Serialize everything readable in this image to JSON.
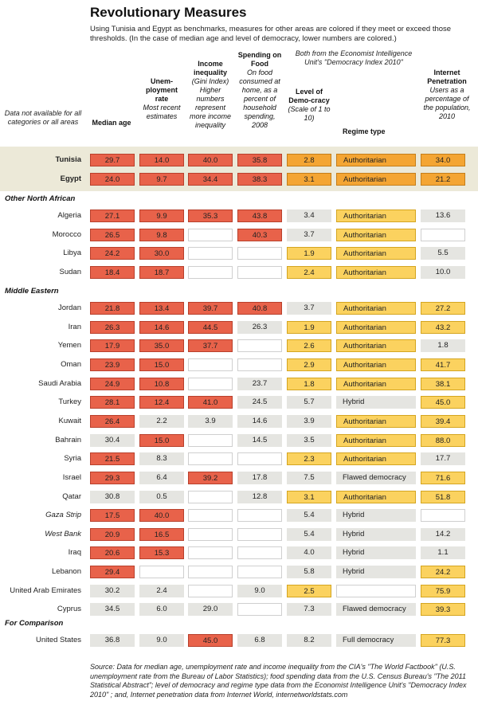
{
  "title": "Revolutionary Measures",
  "intro": "Using Tunisia and Egypt as benchmarks, measures for other areas are colored if they meet or exceed those thresholds.  (In the case of median age and level of democracy, lower numbers are colored.)",
  "note": "Data not available for all categories or all areas",
  "band_header": "Both from the Economist Intelligence Unit's \"Democracy Index 2010\"",
  "columns": [
    {
      "key": "age",
      "title": "Median age",
      "sub": ""
    },
    {
      "key": "unemp",
      "title": "Unem-ployment rate",
      "sub": "Most recent estimates"
    },
    {
      "key": "gini",
      "title": "Income inequality",
      "sub": "(Gini Index) Higher numbers represent more income inequality"
    },
    {
      "key": "food",
      "title": "Spending on Food",
      "sub": "On food consumed at home, as a percent of household spending, 2008"
    },
    {
      "key": "dem",
      "title": "Level of Demo-cracy",
      "sub": "(Scale of 1 to 10)"
    },
    {
      "key": "regime",
      "title": "Regime type",
      "sub": ""
    },
    {
      "key": "net",
      "title": "Internet Penetration",
      "sub": "Users as a percentage of the population, 2010"
    }
  ],
  "colors": {
    "red": "#e8624a",
    "orange": "#f4a533",
    "yellow": "#fbd25f",
    "gray": "#e5e5e1",
    "band": "#ece9d8"
  },
  "chart_data": {
    "type": "table",
    "title": "Revolutionary Measures",
    "sections": [
      {
        "name": "",
        "rows": [
          {
            "name": "Tunisia",
            "style": "bold",
            "cells": [
              [
                "29.7",
                "r"
              ],
              [
                "14.0",
                "r"
              ],
              [
                "40.0",
                "r"
              ],
              [
                "35.8",
                "r"
              ],
              [
                "2.8",
                "o"
              ],
              [
                "Authoritarian",
                "o"
              ],
              [
                "34.0",
                "o"
              ]
            ]
          },
          {
            "name": "Egypt",
            "style": "bold",
            "cells": [
              [
                "24.0",
                "r"
              ],
              [
                "9.7",
                "r"
              ],
              [
                "34.4",
                "r"
              ],
              [
                "38.3",
                "r"
              ],
              [
                "3.1",
                "o"
              ],
              [
                "Authoritarian",
                "o"
              ],
              [
                "21.2",
                "o"
              ]
            ]
          }
        ]
      },
      {
        "name": "Other North African",
        "rows": [
          {
            "name": "Algeria",
            "cells": [
              [
                "27.1",
                "r"
              ],
              [
                "9.9",
                "r"
              ],
              [
                "35.3",
                "r"
              ],
              [
                "43.8",
                "r"
              ],
              [
                "3.4",
                "g"
              ],
              [
                "Authoritarian",
                "y"
              ],
              [
                "13.6",
                "g"
              ]
            ]
          },
          {
            "name": "Morocco",
            "cells": [
              [
                "26.5",
                "r"
              ],
              [
                "9.8",
                "r"
              ],
              [
                "",
                "e"
              ],
              [
                "40.3",
                "r"
              ],
              [
                "3.7",
                "g"
              ],
              [
                "Authoritarian",
                "y"
              ],
              [
                "",
                "e"
              ]
            ]
          },
          {
            "name": "Libya",
            "cells": [
              [
                "24.2",
                "r"
              ],
              [
                "30.0",
                "r"
              ],
              [
                "",
                "e"
              ],
              [
                "",
                "e"
              ],
              [
                "1.9",
                "y"
              ],
              [
                "Authoritarian",
                "y"
              ],
              [
                "5.5",
                "g"
              ]
            ]
          },
          {
            "name": "Sudan",
            "cells": [
              [
                "18.4",
                "r"
              ],
              [
                "18.7",
                "r"
              ],
              [
                "",
                "e"
              ],
              [
                "",
                "e"
              ],
              [
                "2.4",
                "y"
              ],
              [
                "Authoritarian",
                "y"
              ],
              [
                "10.0",
                "g"
              ]
            ]
          }
        ]
      },
      {
        "name": "Middle Eastern",
        "rows": [
          {
            "name": "Jordan",
            "cells": [
              [
                "21.8",
                "r"
              ],
              [
                "13.4",
                "r"
              ],
              [
                "39.7",
                "r"
              ],
              [
                "40.8",
                "r"
              ],
              [
                "3.7",
                "g"
              ],
              [
                "Authoritarian",
                "y"
              ],
              [
                "27.2",
                "y"
              ]
            ]
          },
          {
            "name": "Iran",
            "cells": [
              [
                "26.3",
                "r"
              ],
              [
                "14.6",
                "r"
              ],
              [
                "44.5",
                "r"
              ],
              [
                "26.3",
                "g"
              ],
              [
                "1.9",
                "y"
              ],
              [
                "Authoritarian",
                "y"
              ],
              [
                "43.2",
                "y"
              ]
            ]
          },
          {
            "name": "Yemen",
            "cells": [
              [
                "17.9",
                "r"
              ],
              [
                "35.0",
                "r"
              ],
              [
                "37.7",
                "r"
              ],
              [
                "",
                "e"
              ],
              [
                "2.6",
                "y"
              ],
              [
                "Authoritarian",
                "y"
              ],
              [
                "1.8",
                "g"
              ]
            ]
          },
          {
            "name": "Oman",
            "cells": [
              [
                "23.9",
                "r"
              ],
              [
                "15.0",
                "r"
              ],
              [
                "",
                "e"
              ],
              [
                "",
                "e"
              ],
              [
                "2.9",
                "y"
              ],
              [
                "Authoritarian",
                "y"
              ],
              [
                "41.7",
                "y"
              ]
            ]
          },
          {
            "name": "Saudi Arabia",
            "cells": [
              [
                "24.9",
                "r"
              ],
              [
                "10.8",
                "r"
              ],
              [
                "",
                "e"
              ],
              [
                "23.7",
                "g"
              ],
              [
                "1.8",
                "y"
              ],
              [
                "Authoritarian",
                "y"
              ],
              [
                "38.1",
                "y"
              ]
            ]
          },
          {
            "name": "Turkey",
            "cells": [
              [
                "28.1",
                "r"
              ],
              [
                "12.4",
                "r"
              ],
              [
                "41.0",
                "r"
              ],
              [
                "24.5",
                "g"
              ],
              [
                "5.7",
                "g"
              ],
              [
                "Hybrid",
                "g"
              ],
              [
                "45.0",
                "y"
              ]
            ]
          },
          {
            "name": "Kuwait",
            "cells": [
              [
                "26.4",
                "r"
              ],
              [
                "2.2",
                "g"
              ],
              [
                "3.9",
                "g"
              ],
              [
                "14.6",
                "g"
              ],
              [
                "3.9",
                "g"
              ],
              [
                "Authoritarian",
                "y"
              ],
              [
                "39.4",
                "y"
              ]
            ]
          },
          {
            "name": "Bahrain",
            "cells": [
              [
                "30.4",
                "g"
              ],
              [
                "15.0",
                "r"
              ],
              [
                "",
                "e"
              ],
              [
                "14.5",
                "g"
              ],
              [
                "3.5",
                "g"
              ],
              [
                "Authoritarian",
                "y"
              ],
              [
                "88.0",
                "y"
              ]
            ]
          },
          {
            "name": "Syria",
            "cells": [
              [
                "21.5",
                "r"
              ],
              [
                "8.3",
                "g"
              ],
              [
                "",
                "e"
              ],
              [
                "",
                "e"
              ],
              [
                "2.3",
                "y"
              ],
              [
                "Authoritarian",
                "y"
              ],
              [
                "17.7",
                "g"
              ]
            ]
          },
          {
            "name": "Israel",
            "cells": [
              [
                "29.3",
                "r"
              ],
              [
                "6.4",
                "g"
              ],
              [
                "39.2",
                "r"
              ],
              [
                "17.8",
                "g"
              ],
              [
                "7.5",
                "g"
              ],
              [
                "Flawed democracy",
                "g"
              ],
              [
                "71.6",
                "y"
              ]
            ]
          },
          {
            "name": "Qatar",
            "cells": [
              [
                "30.8",
                "g"
              ],
              [
                "0.5",
                "g"
              ],
              [
                "",
                "e"
              ],
              [
                "12.8",
                "g"
              ],
              [
                "3.1",
                "y"
              ],
              [
                "Authoritarian",
                "y"
              ],
              [
                "51.8",
                "y"
              ]
            ]
          },
          {
            "name": "Gaza Strip",
            "style": "italic",
            "cells": [
              [
                "17.5",
                "r"
              ],
              [
                "40.0",
                "r"
              ],
              [
                "",
                "e"
              ],
              [
                "",
                "e"
              ],
              [
                "5.4",
                "g"
              ],
              [
                "Hybrid",
                "g"
              ],
              [
                "",
                "e"
              ]
            ]
          },
          {
            "name": "West Bank",
            "style": "italic",
            "cells": [
              [
                "20.9",
                "r"
              ],
              [
                "16.5",
                "r"
              ],
              [
                "",
                "e"
              ],
              [
                "",
                "e"
              ],
              [
                "5.4",
                "g"
              ],
              [
                "Hybrid",
                "g"
              ],
              [
                "14.2",
                "g"
              ]
            ]
          },
          {
            "name": "Iraq",
            "cells": [
              [
                "20.6",
                "r"
              ],
              [
                "15.3",
                "r"
              ],
              [
                "",
                "e"
              ],
              [
                "",
                "e"
              ],
              [
                "4.0",
                "g"
              ],
              [
                "Hybrid",
                "g"
              ],
              [
                "1.1",
                "g"
              ]
            ]
          },
          {
            "name": "Lebanon",
            "cells": [
              [
                "29.4",
                "r"
              ],
              [
                "",
                "e"
              ],
              [
                "",
                "e"
              ],
              [
                "",
                "e"
              ],
              [
                "5.8",
                "g"
              ],
              [
                "Hybrid",
                "g"
              ],
              [
                "24.2",
                "y"
              ]
            ]
          },
          {
            "name": "United Arab Emirates",
            "cells": [
              [
                "30.2",
                "g"
              ],
              [
                "2.4",
                "g"
              ],
              [
                "",
                "e"
              ],
              [
                "9.0",
                "g"
              ],
              [
                "2.5",
                "y"
              ],
              [
                "",
                "e"
              ],
              [
                "75.9",
                "y"
              ]
            ]
          },
          {
            "name": "Cyprus",
            "cells": [
              [
                "34.5",
                "g"
              ],
              [
                "6.0",
                "g"
              ],
              [
                "29.0",
                "g"
              ],
              [
                "",
                "e"
              ],
              [
                "7.3",
                "g"
              ],
              [
                "Flawed democracy",
                "g"
              ],
              [
                "39.3",
                "y"
              ]
            ]
          }
        ]
      },
      {
        "name": "For Comparison",
        "rows": [
          {
            "name": "United States",
            "cells": [
              [
                "36.8",
                "g"
              ],
              [
                "9.0",
                "g"
              ],
              [
                "45.0",
                "r"
              ],
              [
                "6.8",
                "g"
              ],
              [
                "8.2",
                "g"
              ],
              [
                "Full democracy",
                "g"
              ],
              [
                "77.3",
                "y"
              ]
            ]
          }
        ]
      }
    ]
  },
  "source": "Source:  Data for median age, unemployment rate and income inequality from the CIA's \"The World Factbook\" (U.S. unemployment rate from the Bureau of Labor Statistics); food spending data from the U.S. Census Bureau's \"The 2011 Statistical Abstract\"; level of democracy and regime type data from the Economist Intelligence Unit's \"Democracy Index 2010\" ; and, Internet penetration data from Internet World, internetworldstats.com"
}
